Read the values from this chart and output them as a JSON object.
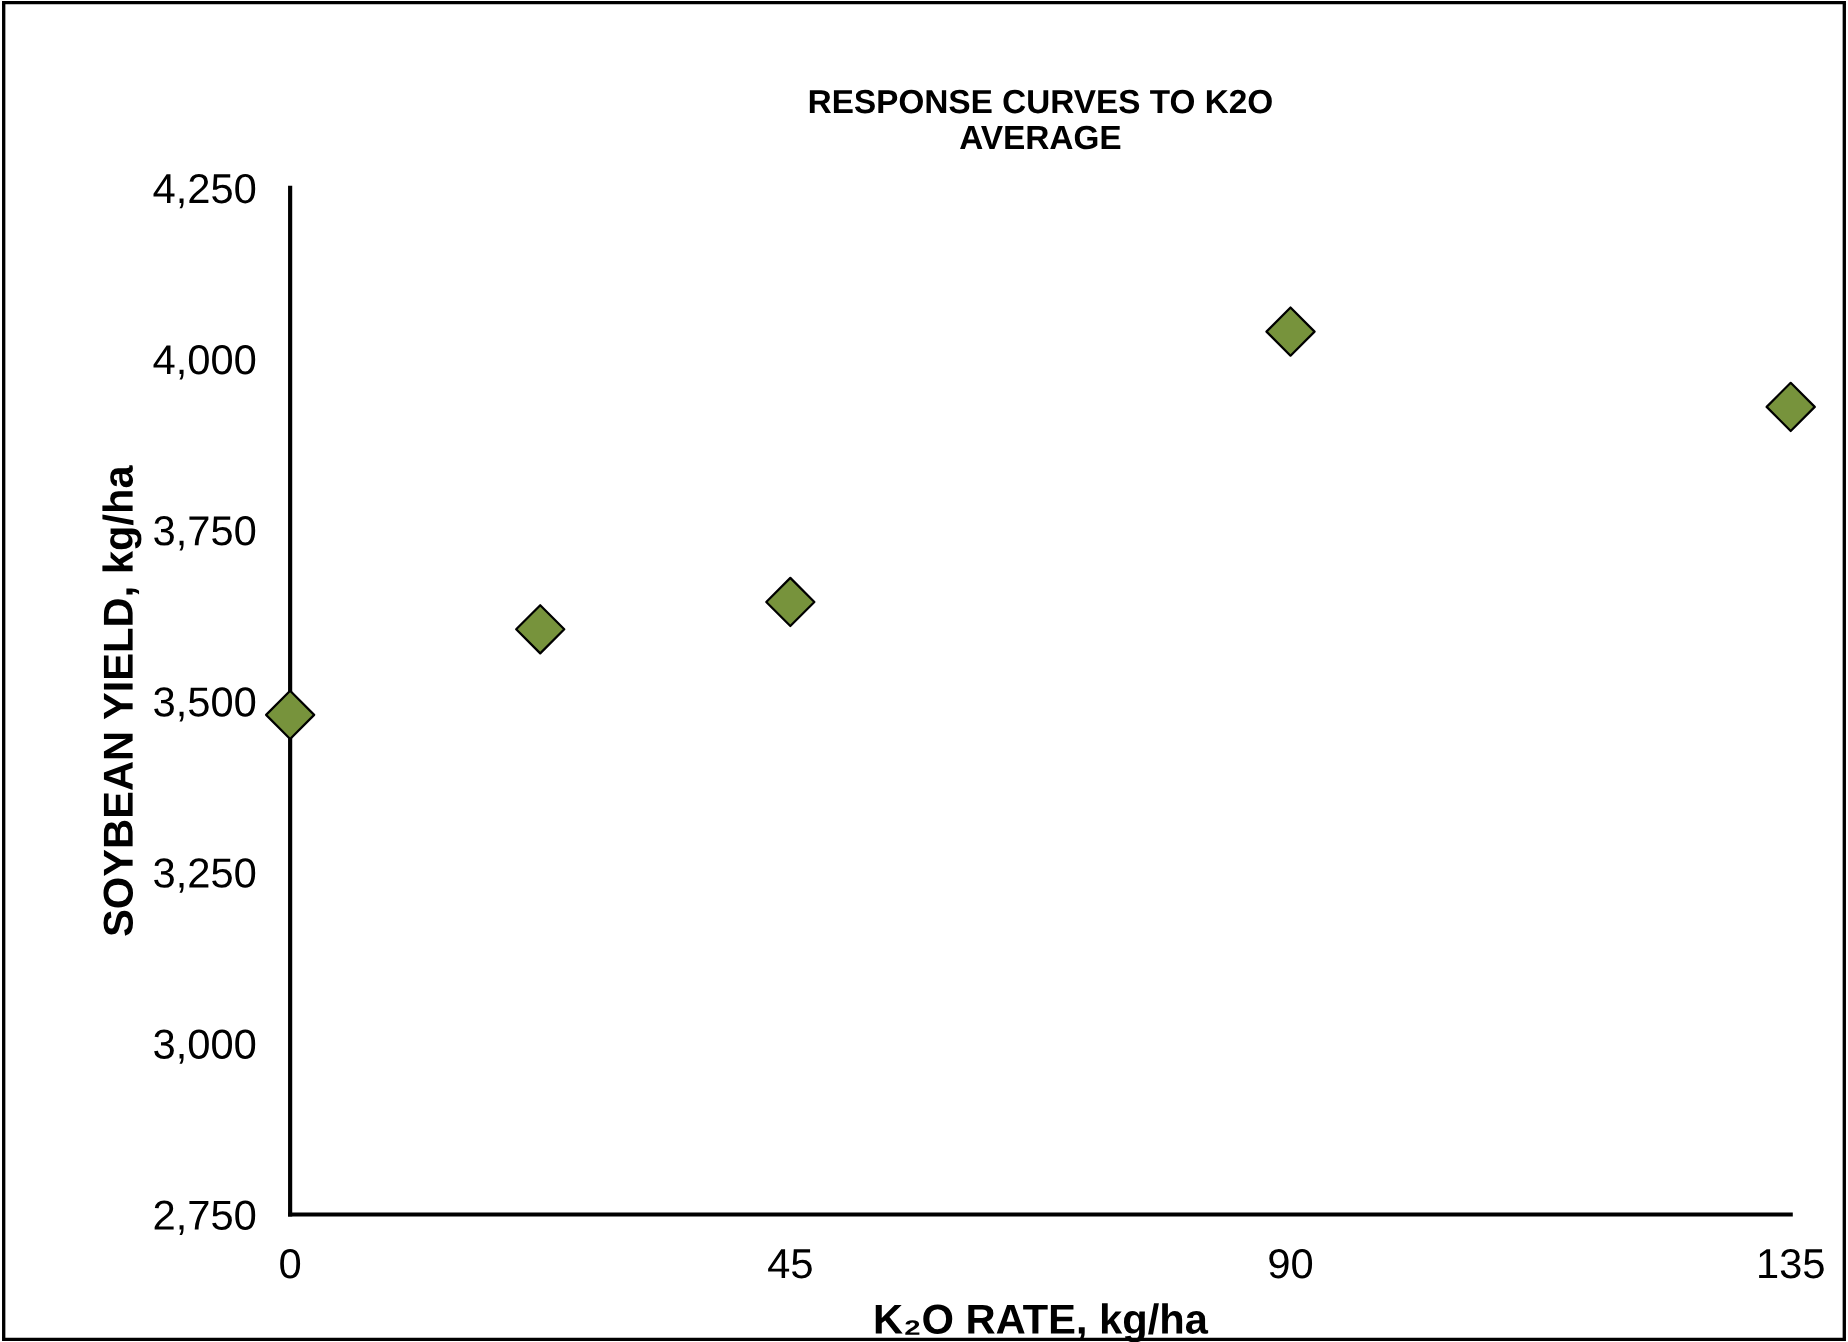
{
  "chart_data": {
    "type": "scatter",
    "title": "RESPONSE CURVES TO K2O\nAVERAGE",
    "xlabel": "K₂O RATE, kg/ha",
    "ylabel": "SOYBEAN YIELD, kg/ha",
    "x": [
      0,
      22.5,
      45,
      90,
      135
    ],
    "series": [
      {
        "color": "#77933c",
        "values": [
          3480,
          3605,
          3645,
          4040,
          3930
        ]
      }
    ],
    "marker": "diamond",
    "grid": false,
    "legend": false,
    "xlim": [
      0,
      135
    ],
    "xticks": [
      0,
      45,
      90,
      135
    ],
    "ylim": [
      2750,
      4250
    ],
    "yticks": [
      {
        "value": 2750,
        "label": "2,750"
      },
      {
        "value": 3000,
        "label": "3,000"
      },
      {
        "value": 3250,
        "label": "3,250"
      },
      {
        "value": 3500,
        "label": "3,500"
      },
      {
        "value": 3750,
        "label": "3,750"
      },
      {
        "value": 4000,
        "label": "4,000"
      },
      {
        "value": 4250,
        "label": "4,250"
      }
    ]
  }
}
